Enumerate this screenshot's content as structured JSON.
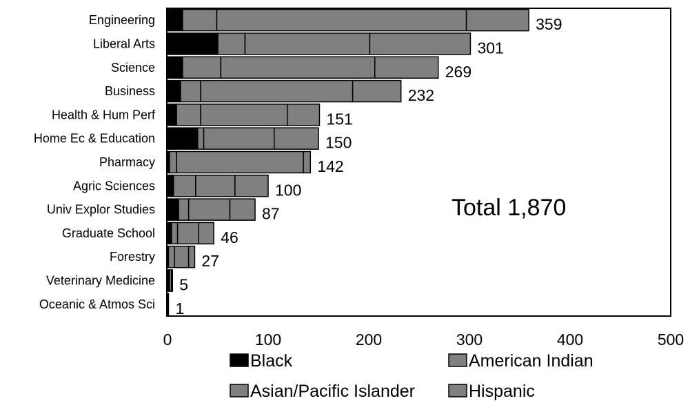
{
  "chart_data": {
    "type": "bar",
    "orientation": "horizontal",
    "stacked": true,
    "categories": [
      "Engineering",
      "Liberal Arts",
      "Science",
      "Business",
      "Health & Hum Perf",
      "Home Ec & Education",
      "Pharmacy",
      "Agric Sciences",
      "Univ Explor Studies",
      "Graduate School",
      "Forestry",
      "Veterinary Medicine",
      "Oceanic & Atmos Sci"
    ],
    "totals": [
      359,
      301,
      269,
      232,
      151,
      150,
      142,
      100,
      87,
      46,
      27,
      5,
      1
    ],
    "series": [
      {
        "name": "Black",
        "color": "#000000",
        "values": [
          15,
          50,
          15,
          13,
          9,
          30,
          2,
          6,
          11,
          4,
          1,
          1,
          1
        ]
      },
      {
        "name": "American Indian",
        "color": "#808080",
        "values": [
          34,
          27,
          38,
          20,
          24,
          6,
          7,
          22,
          10,
          6,
          6,
          1,
          0
        ]
      },
      {
        "name": "Asian/Pacific Islander",
        "color": "#808080",
        "values": [
          248,
          124,
          153,
          151,
          86,
          70,
          126,
          39,
          41,
          21,
          14,
          2,
          0
        ]
      },
      {
        "name": "Hispanic",
        "color": "#808080",
        "values": [
          62,
          100,
          63,
          48,
          32,
          44,
          7,
          33,
          25,
          15,
          6,
          1,
          0
        ]
      }
    ],
    "xlim": [
      0,
      500
    ],
    "xticks": [
      0,
      100,
      200,
      300,
      400,
      500
    ],
    "annotation": "Total 1,870",
    "legend_position": "bottom",
    "grid": false
  }
}
